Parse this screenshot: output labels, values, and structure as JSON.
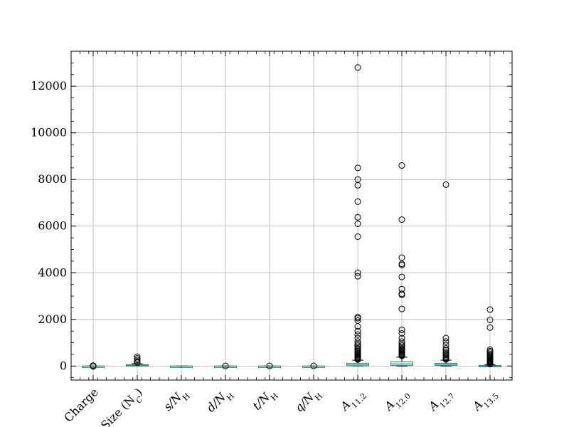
{
  "chart_data": {
    "type": "boxplot",
    "ylim": [
      -600,
      13500
    ],
    "yticks": [
      0,
      2000,
      4000,
      6000,
      8000,
      10000,
      12000
    ],
    "grid": true,
    "colors": {
      "box": "#1f77b4",
      "median": "#2ca02c",
      "whisker": "#000000",
      "flier": "#000000",
      "grid": "#b0b0b0"
    },
    "categories": [
      {
        "name": "Charge",
        "label": "Charge",
        "q1": -1,
        "median": 0,
        "q3": 1,
        "whisker_low": -2,
        "whisker_high": 2,
        "fliers": [
          -20,
          20
        ]
      },
      {
        "name": "Size (N_C)",
        "label": "Size (N",
        "sub": "C",
        "suffix": ")",
        "q1": 10,
        "median": 30,
        "q3": 60,
        "whisker_low": 5,
        "whisker_high": 100,
        "fliers": [
          150,
          200,
          260,
          330,
          400
        ]
      },
      {
        "name": "s/N_H",
        "label": "s/N",
        "sub": "H",
        "q1": 0,
        "median": 0.3,
        "q3": 0.6,
        "whisker_low": 0,
        "whisker_high": 1,
        "fliers": []
      },
      {
        "name": "d/N_H",
        "label": "d/N",
        "sub": "H",
        "q1": 0,
        "median": 0.2,
        "q3": 0.5,
        "whisker_low": 0,
        "whisker_high": 1,
        "fliers": [
          5
        ]
      },
      {
        "name": "t/N_H",
        "label": "t/N",
        "sub": "H",
        "q1": 0,
        "median": 0.1,
        "q3": 0.3,
        "whisker_low": 0,
        "whisker_high": 0.6,
        "fliers": [
          5
        ]
      },
      {
        "name": "q/N_H",
        "label": "q/N",
        "sub": "H",
        "q1": 0,
        "median": 0.05,
        "q3": 0.2,
        "whisker_low": 0,
        "whisker_high": 0.4,
        "fliers": [
          5
        ]
      },
      {
        "name": "A_11.2",
        "label": "A",
        "sub": "11.2",
        "q1": 10,
        "median": 50,
        "q3": 120,
        "whisker_low": 0,
        "whisker_high": 250,
        "fliers": [
          12800,
          8500,
          8000,
          7750,
          7050,
          6380,
          6100,
          5550,
          4000,
          3850,
          2100,
          2050,
          1950,
          1700,
          1500,
          1350,
          1200,
          1050,
          950,
          880,
          820,
          760,
          700,
          650,
          600,
          560,
          520,
          480,
          440,
          400,
          370,
          340,
          310,
          280
        ]
      },
      {
        "name": "A_12.0",
        "label": "A",
        "sub": "12.0",
        "q1": 30,
        "median": 90,
        "q3": 180,
        "whisker_low": 0,
        "whisker_high": 380,
        "fliers": [
          8600,
          6280,
          4650,
          4380,
          4330,
          3820,
          3300,
          3100,
          3050,
          2450,
          1550,
          1400,
          1200,
          1050,
          950,
          880,
          820,
          760,
          720,
          680,
          640,
          600,
          560,
          520,
          490,
          460,
          430
        ]
      },
      {
        "name": "A_12.7",
        "label": "A",
        "sub": "12.7",
        "q1": 30,
        "median": 70,
        "q3": 120,
        "whisker_low": 0,
        "whisker_high": 250,
        "fliers": [
          7780,
          1200,
          1050,
          900,
          760,
          680,
          600,
          540,
          480,
          430,
          380,
          340,
          300,
          280
        ]
      },
      {
        "name": "A_13.5",
        "label": "A",
        "sub": "13.5",
        "q1": 0,
        "median": 10,
        "q3": 30,
        "whisker_low": 0,
        "whisker_high": 60,
        "fliers": [
          2420,
          1980,
          1650,
          700,
          640,
          580,
          520,
          460,
          420,
          380,
          340,
          300,
          260,
          230,
          200,
          170,
          140,
          110,
          90
        ]
      }
    ]
  }
}
